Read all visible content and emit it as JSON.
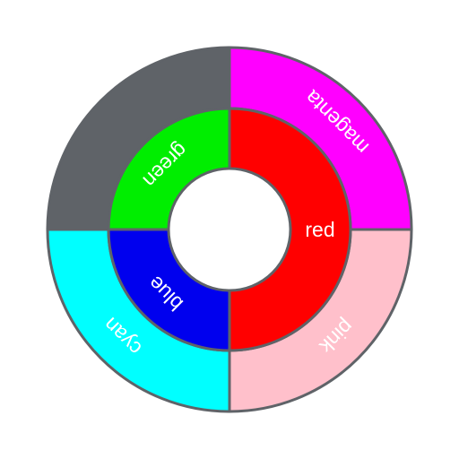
{
  "chart_data": {
    "type": "pie",
    "title": "",
    "rings": [
      {
        "name": "",
        "slices": [
          {
            "label": "",
            "value": 25,
            "color": "#5f6368"
          },
          {
            "label": "cyan",
            "value": 25,
            "color": "#00ffff"
          },
          {
            "label": "pink",
            "value": 25,
            "color": "#ffc0cb"
          },
          {
            "label": "magenta",
            "value": 25,
            "color": "#ff00ff"
          }
        ]
      },
      {
        "name": "",
        "slices": [
          {
            "label": "green",
            "value": 25,
            "color": "#00ee00"
          },
          {
            "label": "blue",
            "value": 25,
            "color": "#0000ee"
          },
          {
            "label": "red",
            "value": 50,
            "color": "#ff0000"
          }
        ]
      }
    ],
    "edge_color": "#5f6368",
    "label_color": "#ffffff"
  }
}
